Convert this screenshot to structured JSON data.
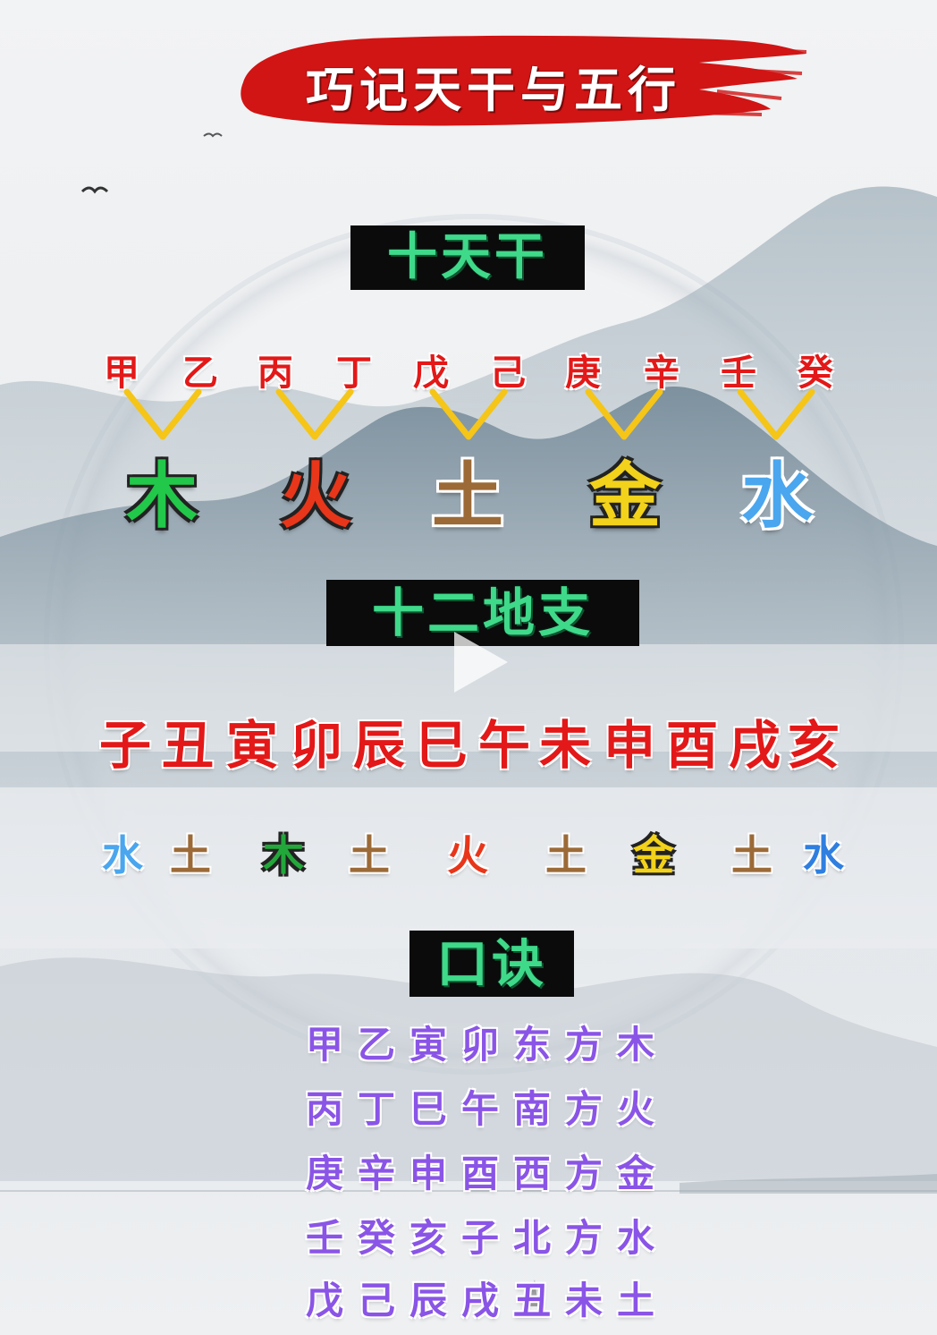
{
  "title": "巧记天干与五行",
  "sections": {
    "stems_header": "十天干",
    "branches_header": "十二地支",
    "mnemonic_header": "口诀"
  },
  "stems": [
    "甲",
    "乙",
    "丙",
    "丁",
    "戊",
    "己",
    "庚",
    "辛",
    "壬",
    "癸"
  ],
  "stem_elements": [
    {
      "char": "木",
      "color": "#22c84a"
    },
    {
      "char": "火",
      "color": "#e8361a"
    },
    {
      "char": "土",
      "color": "#9b6a37"
    },
    {
      "char": "金",
      "color": "#f2d21a"
    },
    {
      "char": "水",
      "color": "#4aa6ee"
    }
  ],
  "branches": [
    "子",
    "丑",
    "寅",
    "卯",
    "辰",
    "巳",
    "午",
    "未",
    "申",
    "酉",
    "戌",
    "亥"
  ],
  "branch_elements": [
    {
      "char": "水",
      "color": "#4aa6ee"
    },
    {
      "char": "土",
      "color": "#9b6a37"
    },
    {
      "char": "木",
      "color": "#22a83a"
    },
    {
      "char": "土",
      "color": "#9b6a37"
    },
    {
      "char": "火",
      "color": "#e8361a"
    },
    {
      "char": "土",
      "color": "#9b6a37"
    },
    {
      "char": "金",
      "color": "#f2d21a"
    },
    {
      "char": "土",
      "color": "#9b6a37"
    },
    {
      "char": "水",
      "color": "#2f7fe0"
    }
  ],
  "mnemonic": [
    "甲乙寅卯东方木",
    "丙丁巳午南方火",
    "庚辛申酉西方金",
    "壬癸亥子北方水",
    "戊己辰戌丑未土"
  ],
  "colors": {
    "banner_red": "#d11414",
    "header_bg": "#0b0b0b",
    "header_text": "#3fd98a",
    "stem_red": "#e31818",
    "chevron_yellow": "#f5c518",
    "verse_purple": "#8a55e6"
  }
}
